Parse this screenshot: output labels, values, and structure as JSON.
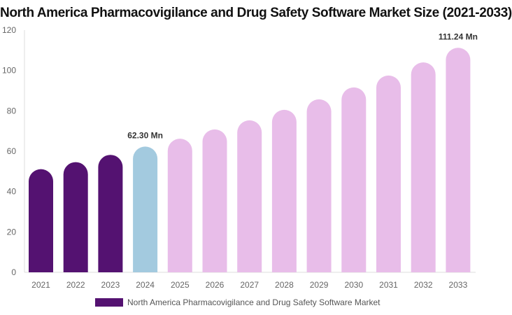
{
  "chart_data": {
    "type": "bar",
    "title": "North America Pharmacovigilance and Drug Safety Software Market Size (2021-2033)",
    "categories": [
      "2021",
      "2022",
      "2023",
      "2024",
      "2025",
      "2026",
      "2027",
      "2028",
      "2029",
      "2030",
      "2031",
      "2032",
      "2033"
    ],
    "series": [
      {
        "name": "North America Pharmacovigilance and Drug Safety Software Market",
        "values": [
          51.1,
          54.6,
          58.2,
          62.3,
          66.2,
          70.8,
          75.3,
          80.5,
          85.7,
          91.6,
          97.5,
          104.0,
          111.24
        ]
      }
    ],
    "data_labels": {
      "3": "62.30 Mn",
      "12": "111.24 Mn"
    },
    "ylim": [
      0,
      120
    ],
    "yticks": [
      0,
      20,
      40,
      60,
      80,
      100,
      120
    ],
    "grid": false,
    "legend_position": "bottom",
    "colors": {
      "historical": "#541271",
      "base": "#a3cadf",
      "forecast": "#e8bde9"
    }
  }
}
